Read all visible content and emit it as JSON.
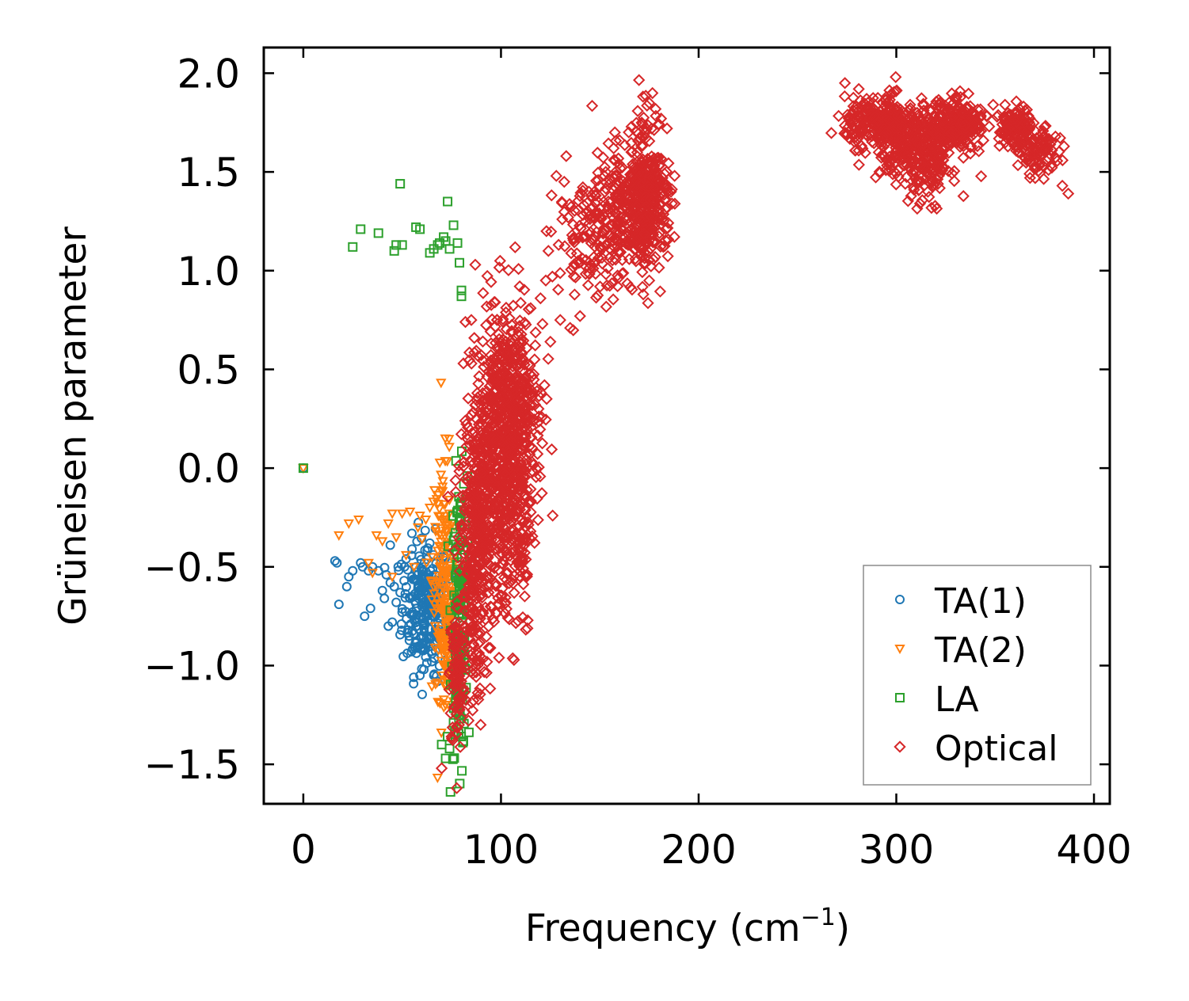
{
  "chart_data": {
    "type": "scatter",
    "title": "",
    "xlabel": "Frequency (cm",
    "xlabel_sup": "−1",
    "xlabel_close": ")",
    "ylabel": "Grüneisen parameter",
    "xlim": [
      -20,
      408
    ],
    "ylim": [
      -1.7,
      2.13
    ],
    "xticks": [
      0,
      100,
      200,
      300,
      400
    ],
    "xtick_labels": [
      "0",
      "100",
      "200",
      "300",
      "400"
    ],
    "yticks": [
      -1.5,
      -1.0,
      -0.5,
      0.0,
      0.5,
      1.0,
      1.5,
      2.0
    ],
    "ytick_labels": [
      "−1.5",
      "−1.0",
      "−0.5",
      "0.0",
      "0.5",
      "1.0",
      "1.5",
      "2.0"
    ],
    "grid": false,
    "legend_position": "bottom-right",
    "series": [
      {
        "name": "TA(1)",
        "marker": "circle",
        "color": "#1f77b4",
        "points": [
          [
            0,
            0
          ],
          [
            16,
            -0.47
          ],
          [
            17,
            -0.48
          ],
          [
            18,
            -0.69
          ],
          [
            22,
            -0.6
          ],
          [
            23,
            -0.55
          ],
          [
            25,
            -0.52
          ],
          [
            29,
            -0.48
          ],
          [
            30,
            -0.5
          ],
          [
            31,
            -0.75
          ],
          [
            33,
            -0.52
          ],
          [
            34,
            -0.71
          ],
          [
            35,
            -0.5
          ],
          [
            38,
            -0.52
          ],
          [
            40,
            -0.62
          ],
          [
            41,
            -0.66
          ],
          [
            42,
            -0.54
          ],
          [
            43,
            -0.8
          ],
          [
            44,
            -0.58
          ],
          [
            44,
            -0.39
          ],
          [
            45,
            -0.78
          ],
          [
            46,
            -0.6
          ],
          [
            47,
            -0.68
          ],
          [
            48,
            -0.5
          ],
          [
            49,
            -0.63
          ],
          [
            50,
            -0.73
          ],
          [
            51,
            -0.57
          ],
          [
            52,
            -0.46
          ],
          [
            53,
            -0.82
          ],
          [
            54,
            -0.66
          ],
          [
            55,
            -0.41
          ],
          [
            55,
            -0.55
          ],
          [
            56,
            -0.74
          ],
          [
            57,
            -0.5
          ],
          [
            57,
            -0.88
          ],
          [
            58,
            -0.61
          ],
          [
            59,
            -1.05
          ],
          [
            60,
            -0.7
          ],
          [
            60,
            -0.92
          ],
          [
            61,
            -1.02
          ],
          [
            62,
            -0.56
          ],
          [
            63,
            -0.77
          ],
          [
            64,
            -0.38
          ],
          [
            65,
            -0.98
          ],
          [
            66,
            -1.05
          ],
          [
            67,
            -0.64
          ],
          [
            68,
            -1.08
          ],
          [
            69,
            -0.86
          ],
          [
            70,
            -0.57
          ],
          [
            71,
            -0.7
          ]
        ],
        "clusters": [
          {
            "center": [
              62,
              -0.7
            ],
            "spread": [
              6,
              0.17
            ],
            "count": 240
          }
        ]
      },
      {
        "name": "TA(2)",
        "marker": "triangle-down",
        "color": "#ff7f0e",
        "points": [
          [
            0,
            0
          ],
          [
            18,
            -0.34
          ],
          [
            23,
            -0.28
          ],
          [
            28,
            -0.26
          ],
          [
            33,
            -0.48
          ],
          [
            35,
            -0.53
          ],
          [
            37,
            -0.34
          ],
          [
            40,
            -0.37
          ],
          [
            43,
            -0.28
          ],
          [
            45,
            -0.23
          ],
          [
            45,
            -0.55
          ],
          [
            47,
            -0.35
          ],
          [
            50,
            -0.23
          ],
          [
            52,
            -0.44
          ],
          [
            54,
            -0.22
          ],
          [
            56,
            -0.5
          ],
          [
            58,
            -0.3
          ],
          [
            59,
            -0.24
          ],
          [
            60,
            -0.36
          ],
          [
            62,
            -0.26
          ],
          [
            64,
            -0.2
          ],
          [
            65,
            -0.45
          ],
          [
            66,
            -0.6
          ],
          [
            67,
            -0.32
          ],
          [
            68,
            -0.18
          ],
          [
            69,
            -0.85
          ],
          [
            70,
            -1.05
          ],
          [
            71,
            -0.5
          ],
          [
            72,
            -1.2
          ],
          [
            73,
            -0.95
          ],
          [
            74,
            -0.7
          ],
          [
            75,
            -0.28
          ],
          [
            76,
            -1.1
          ],
          [
            77,
            -0.62
          ],
          [
            78,
            -0.9
          ]
        ],
        "clusters": [
          {
            "center": [
              71,
              -0.55
            ],
            "spread": [
              3,
              0.3
            ],
            "count": 140
          },
          {
            "center": [
              73,
              -0.95
            ],
            "spread": [
              2,
              0.15
            ],
            "count": 60
          }
        ]
      },
      {
        "name": "LA",
        "marker": "square",
        "color": "#2ca02c",
        "points": [
          [
            0,
            0
          ],
          [
            25,
            1.12
          ],
          [
            29,
            1.21
          ],
          [
            38,
            1.19
          ],
          [
            46,
            1.1
          ],
          [
            47,
            1.13
          ],
          [
            49,
            1.44
          ],
          [
            50,
            1.13
          ],
          [
            57,
            1.22
          ],
          [
            59,
            1.21
          ],
          [
            64,
            1.09
          ],
          [
            66,
            1.11
          ],
          [
            68,
            1.13
          ],
          [
            69,
            1.14
          ],
          [
            71,
            1.17
          ],
          [
            72,
            1.15
          ],
          [
            73,
            1.35
          ],
          [
            74,
            1.11
          ],
          [
            76,
            1.23
          ],
          [
            78,
            1.14
          ],
          [
            79,
            1.04
          ],
          [
            80,
            0.87
          ],
          [
            80,
            0.9
          ],
          [
            70,
            -1.4
          ],
          [
            72,
            -1.47
          ],
          [
            73,
            -1.36
          ],
          [
            74,
            -1.42
          ],
          [
            76,
            -1.29
          ],
          [
            78,
            -1.15
          ],
          [
            79,
            -0.7
          ],
          [
            80,
            -0.55
          ],
          [
            81,
            -0.4
          ],
          [
            82,
            -0.27
          ],
          [
            83,
            -0.37
          ]
        ],
        "clusters": [
          {
            "center": [
              79,
              -0.75
            ],
            "spread": [
              2,
              0.35
            ],
            "count": 150
          }
        ]
      },
      {
        "name": "Optical",
        "marker": "diamond",
        "color": "#d62728",
        "points": [
          [
            70,
            -1.52
          ],
          [
            75,
            -1.36
          ],
          [
            78,
            -1.2
          ],
          [
            87,
            1.03
          ],
          [
            82,
            0.74
          ],
          [
            85,
            0.75
          ],
          [
            97,
            0.84
          ],
          [
            98,
            0.75
          ],
          [
            81,
            0.53
          ],
          [
            88,
            0.38
          ],
          [
            99,
            -0.96
          ],
          [
            99,
            -0.69
          ],
          [
            115,
            0.81
          ],
          [
            117,
            0.55
          ],
          [
            119,
            0.3
          ],
          [
            120,
            0.86
          ],
          [
            122,
            0.42
          ],
          [
            121,
            0.73
          ],
          [
            125,
            0.64
          ],
          [
            128,
            1.48
          ],
          [
            131,
            1.26
          ],
          [
            132,
            1.45
          ],
          [
            133,
            1.58
          ],
          [
            134,
            1.27
          ],
          [
            135,
            0.71
          ],
          [
            136,
            1.18
          ],
          [
            130,
            0.75
          ],
          [
            126,
            0.97
          ],
          [
            124,
            1.1
          ],
          [
            123,
            1.2
          ],
          [
            140,
            0.77
          ],
          [
            143,
            1.02
          ],
          [
            148,
            1.38
          ],
          [
            153,
            1.5
          ],
          [
            157,
            1.62
          ],
          [
            160,
            1.66
          ],
          [
            172,
            0.88
          ],
          [
            175,
            0.95
          ],
          [
            180,
            1.74
          ],
          [
            181,
            1.77
          ],
          [
            184,
            1.72
          ],
          [
            186,
            1.4
          ],
          [
            274,
            1.95
          ],
          [
            281,
            1.92
          ],
          [
            285,
            1.87
          ],
          [
            295,
            1.88
          ],
          [
            300,
            1.82
          ],
          [
            307,
            1.84
          ],
          [
            312,
            1.34
          ],
          [
            316,
            1.4
          ],
          [
            322,
            1.85
          ],
          [
            330,
            1.88
          ],
          [
            340,
            1.79
          ],
          [
            347,
            1.73
          ],
          [
            349,
            1.84
          ],
          [
            355,
            1.84
          ],
          [
            360,
            1.8
          ],
          [
            365,
            1.75
          ],
          [
            370,
            1.66
          ],
          [
            377,
            1.51
          ],
          [
            384,
            1.43
          ],
          [
            387,
            1.39
          ]
        ],
        "clusters": [
          {
            "center": [
              78,
              -1.05
            ],
            "spread": [
              2,
              0.2
            ],
            "count": 90
          },
          {
            "center": [
              85,
              -0.5
            ],
            "spread": [
              3,
              0.35
            ],
            "count": 200
          },
          {
            "center": [
              92,
              -0.2
            ],
            "spread": [
              5,
              0.35
            ],
            "count": 320
          },
          {
            "center": [
              102,
              0.1
            ],
            "spread": [
              6,
              0.35
            ],
            "count": 420
          },
          {
            "center": [
              108,
              -0.25
            ],
            "spread": [
              4,
              0.3
            ],
            "count": 120
          },
          {
            "center": [
              112,
              0.3
            ],
            "spread": [
              5,
              0.25
            ],
            "count": 150
          },
          {
            "center": [
              98,
              0.45
            ],
            "spread": [
              5,
              0.2
            ],
            "count": 80
          },
          {
            "center": [
              145,
              1.15
            ],
            "spread": [
              8,
              0.15
            ],
            "count": 120
          },
          {
            "center": [
              158,
              1.3
            ],
            "spread": [
              6,
              0.15
            ],
            "count": 120
          },
          {
            "center": [
              168,
              1.32
            ],
            "spread": [
              5,
              0.18
            ],
            "count": 160
          },
          {
            "center": [
              174,
              1.45
            ],
            "spread": [
              4,
              0.2
            ],
            "count": 160
          },
          {
            "center": [
              178,
              1.35
            ],
            "spread": [
              4,
              0.15
            ],
            "count": 90
          },
          {
            "center": [
              290,
              1.75
            ],
            "spread": [
              8,
              0.06
            ],
            "count": 200
          },
          {
            "center": [
              303,
              1.65
            ],
            "spread": [
              8,
              0.1
            ],
            "count": 220
          },
          {
            "center": [
              318,
              1.55
            ],
            "spread": [
              5,
              0.1
            ],
            "count": 120
          },
          {
            "center": [
              325,
              1.72
            ],
            "spread": [
              7,
              0.08
            ],
            "count": 160
          },
          {
            "center": [
              336,
              1.74
            ],
            "spread": [
              5,
              0.06
            ],
            "count": 90
          },
          {
            "center": [
              360,
              1.72
            ],
            "spread": [
              4,
              0.05
            ],
            "count": 120
          },
          {
            "center": [
              372,
              1.6
            ],
            "spread": [
              5,
              0.06
            ],
            "count": 90
          }
        ]
      }
    ]
  }
}
